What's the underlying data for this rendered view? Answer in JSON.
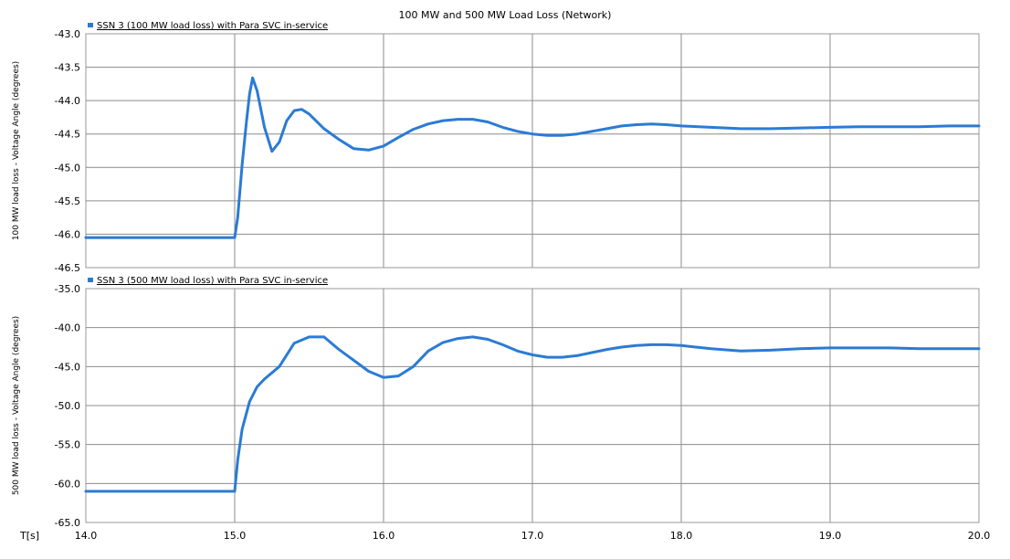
{
  "title": "100 MW and 500 MW Load Loss (Network)",
  "x_axis_label": "T[s]",
  "colors": {
    "series": "#2b7bd4",
    "grid": "#8c8c8c",
    "frame": "#9a9a9a",
    "background": "#ffffff",
    "text": "#000000"
  },
  "chart_data": [
    {
      "type": "line",
      "legend": "SSN 3 (100 MW load loss) with Para SVC in-service",
      "ylabel": "100 MW load loss - Voltage Angle (degrees)",
      "xlim": [
        14.0,
        20.0
      ],
      "ylim": [
        -46.5,
        -43.0
      ],
      "xticks": [
        "14.0",
        "15.0",
        "16.0",
        "17.0",
        "18.0",
        "19.0",
        "20.0"
      ],
      "yticks": [
        "-43.0",
        "-43.5",
        "-44.0",
        "-44.5",
        "-45.0",
        "-45.5",
        "-46.0",
        "-46.5"
      ],
      "grid": true,
      "series": [
        {
          "x": [
            14.0,
            14.5,
            15.0,
            15.02,
            15.05,
            15.08,
            15.1,
            15.12,
            15.15,
            15.2,
            15.25,
            15.3,
            15.35,
            15.4,
            15.45,
            15.5,
            15.6,
            15.7,
            15.8,
            15.9,
            16.0,
            16.1,
            16.2,
            16.3,
            16.4,
            16.5,
            16.6,
            16.7,
            16.8,
            16.9,
            17.0,
            17.1,
            17.2,
            17.3,
            17.4,
            17.5,
            17.6,
            17.7,
            17.8,
            17.9,
            18.0,
            18.2,
            18.4,
            18.6,
            18.8,
            19.0,
            19.2,
            19.4,
            19.6,
            19.8,
            20.0
          ],
          "y": [
            -46.05,
            -46.05,
            -46.05,
            -45.75,
            -44.95,
            -44.3,
            -43.9,
            -43.66,
            -43.85,
            -44.4,
            -44.76,
            -44.62,
            -44.3,
            -44.15,
            -44.13,
            -44.2,
            -44.42,
            -44.58,
            -44.72,
            -44.74,
            -44.68,
            -44.55,
            -44.43,
            -44.35,
            -44.3,
            -44.28,
            -44.28,
            -44.32,
            -44.4,
            -44.46,
            -44.5,
            -44.52,
            -44.52,
            -44.5,
            -44.46,
            -44.42,
            -44.38,
            -44.36,
            -44.35,
            -44.36,
            -44.38,
            -44.4,
            -44.42,
            -44.42,
            -44.41,
            -44.4,
            -44.39,
            -44.39,
            -44.39,
            -44.38,
            -44.38
          ]
        }
      ]
    },
    {
      "type": "line",
      "legend": "SSN 3 (500 MW load loss) with Para SVC in-service",
      "ylabel": "500 MW load loss - Voltage Angle (degrees)",
      "xlim": [
        14.0,
        20.0
      ],
      "ylim": [
        -65.0,
        -35.0
      ],
      "xticks": [
        "14.0",
        "15.0",
        "16.0",
        "17.0",
        "18.0",
        "19.0",
        "20.0"
      ],
      "yticks": [
        "-35.0",
        "-40.0",
        "-45.0",
        "-50.0",
        "-55.0",
        "-60.0",
        "-65.0"
      ],
      "grid": true,
      "series": [
        {
          "x": [
            14.0,
            14.5,
            15.0,
            15.02,
            15.05,
            15.1,
            15.15,
            15.2,
            15.3,
            15.4,
            15.5,
            15.6,
            15.7,
            15.8,
            15.9,
            16.0,
            16.1,
            16.2,
            16.3,
            16.4,
            16.5,
            16.6,
            16.7,
            16.8,
            16.9,
            17.0,
            17.1,
            17.2,
            17.3,
            17.4,
            17.5,
            17.6,
            17.7,
            17.8,
            17.9,
            18.0,
            18.2,
            18.4,
            18.6,
            18.8,
            19.0,
            19.2,
            19.4,
            19.6,
            19.8,
            20.0
          ],
          "y": [
            -61.0,
            -61.0,
            -61.0,
            -57.0,
            -53.0,
            -49.5,
            -47.6,
            -46.6,
            -45.0,
            -42.0,
            -41.2,
            -41.2,
            -42.8,
            -44.2,
            -45.6,
            -46.4,
            -46.2,
            -45.0,
            -43.0,
            -41.9,
            -41.4,
            -41.2,
            -41.5,
            -42.2,
            -43.0,
            -43.5,
            -43.8,
            -43.8,
            -43.6,
            -43.2,
            -42.8,
            -42.5,
            -42.3,
            -42.2,
            -42.2,
            -42.3,
            -42.7,
            -43.0,
            -42.9,
            -42.7,
            -42.6,
            -42.6,
            -42.6,
            -42.7,
            -42.7,
            -42.7
          ]
        }
      ]
    }
  ]
}
